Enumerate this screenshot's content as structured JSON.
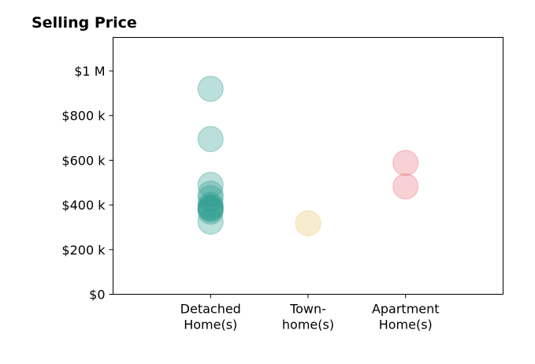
{
  "chart_data": {
    "type": "scatter",
    "title": "Selling Price",
    "xlabel": "",
    "ylabel": "",
    "categories": [
      [
        "Detached",
        "Home(s)"
      ],
      [
        "Town-",
        "home(s)"
      ],
      [
        "Apartment",
        "Home(s)"
      ]
    ],
    "y_ticks": [
      {
        "value": 0,
        "label": "$0"
      },
      {
        "value": 200000,
        "label": "$200 k"
      },
      {
        "value": 400000,
        "label": "$400 k"
      },
      {
        "value": 600000,
        "label": "$600 k"
      },
      {
        "value": 800000,
        "label": "$800 k"
      },
      {
        "value": 1000000,
        "label": "$1 M"
      }
    ],
    "ylim": [
      0,
      1150000
    ],
    "xlim": [
      -1,
      3
    ],
    "grid": false,
    "legend": "none",
    "series": [
      {
        "category_index": 0,
        "color": "#2a9d8f",
        "values": [
          920000,
          695000,
          490000,
          450000,
          430000,
          400000,
          390000,
          385000,
          380000,
          370000,
          325000
        ]
      },
      {
        "category_index": 1,
        "color": "#e9c46a",
        "values": [
          318000
        ]
      },
      {
        "category_index": 2,
        "color": "#e76f7a",
        "values": [
          588000,
          483000
        ]
      }
    ],
    "point_alpha": 0.32
  }
}
